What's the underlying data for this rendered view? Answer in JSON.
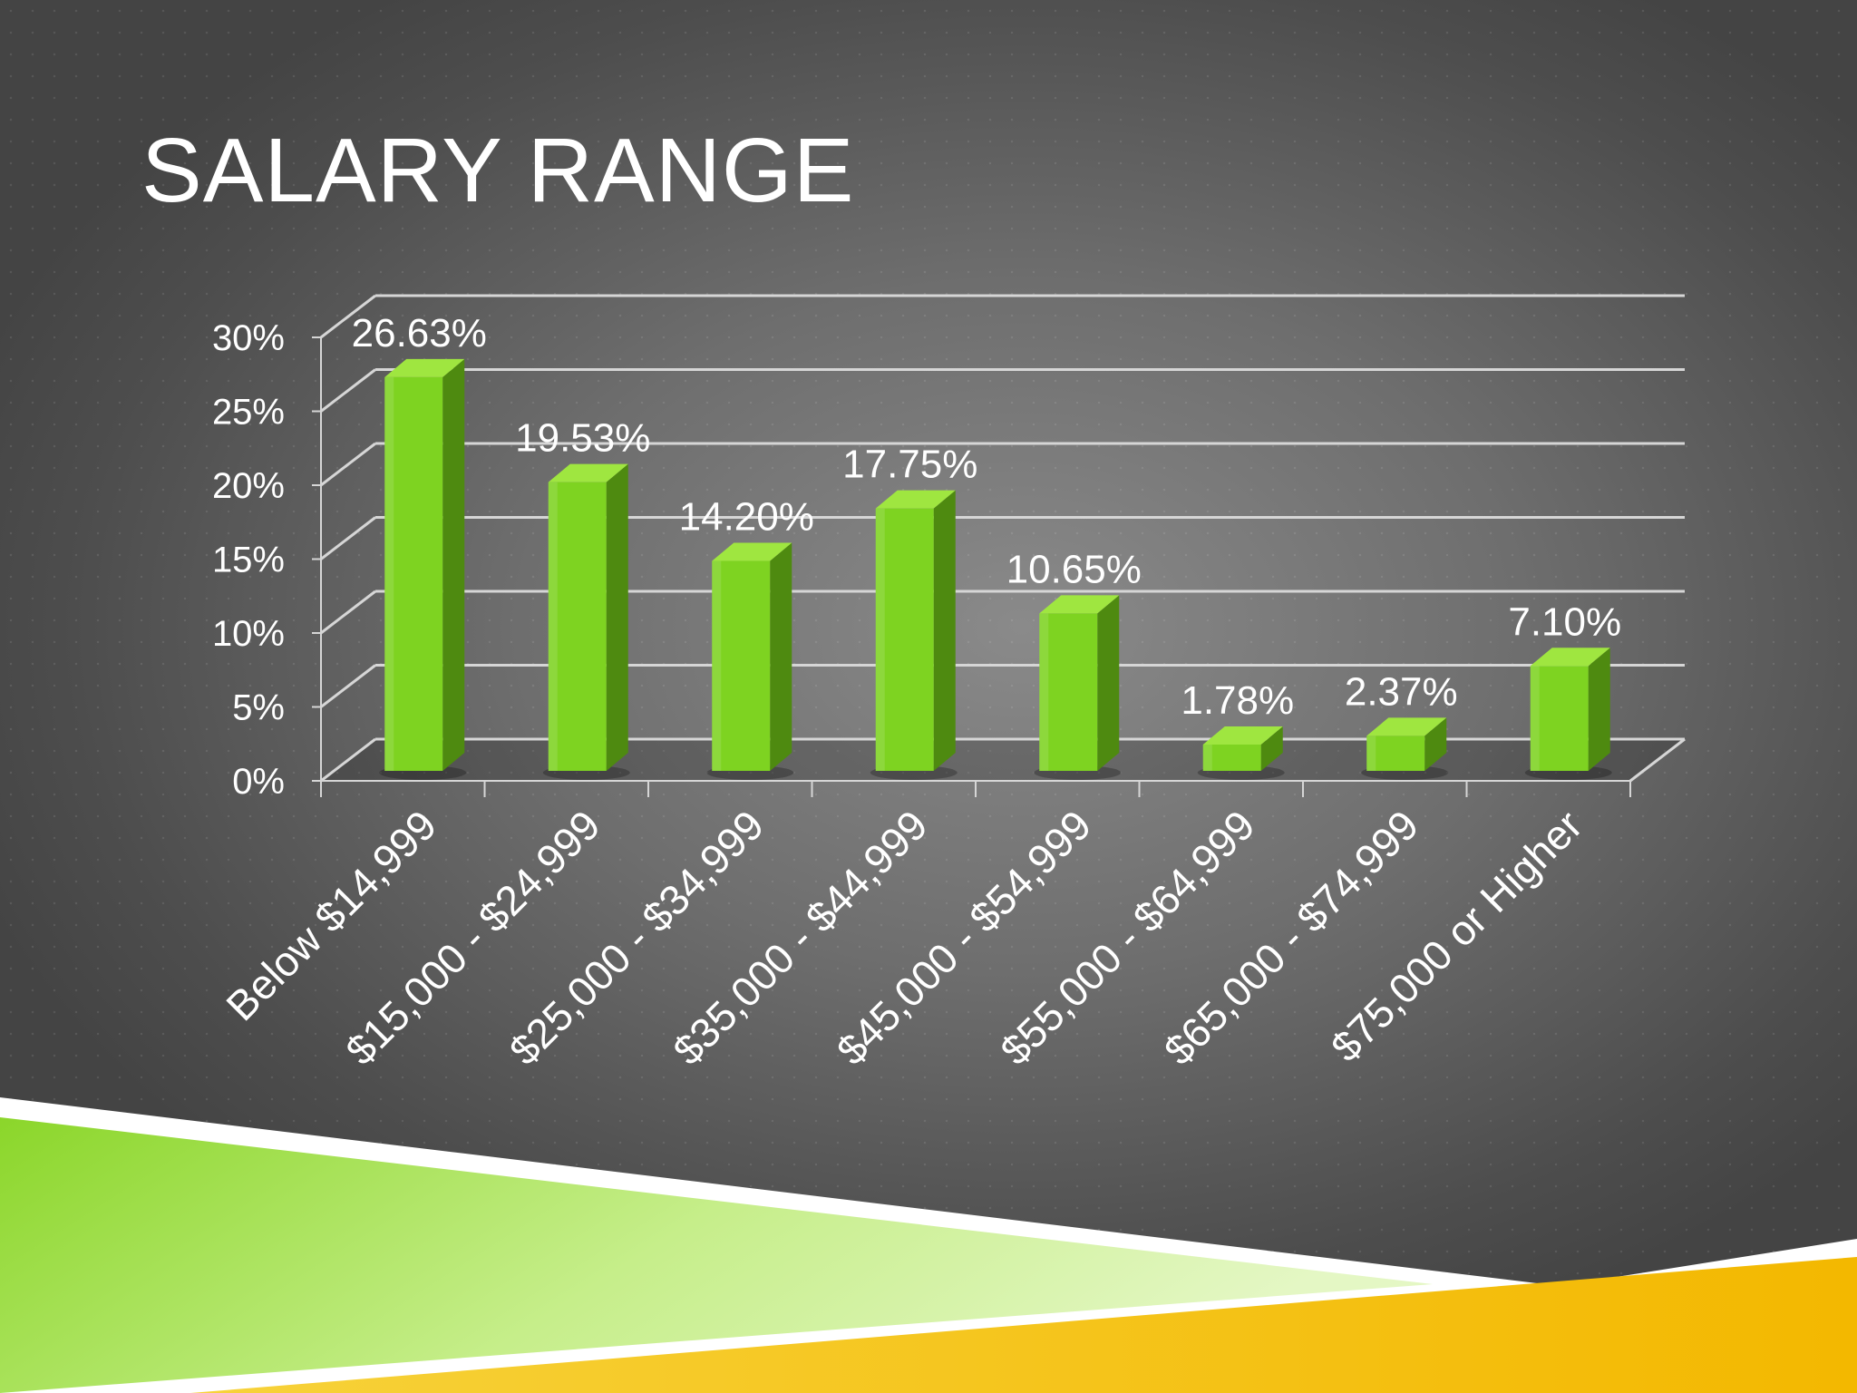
{
  "slide": {
    "title": "SALARY RANGE"
  },
  "colors": {
    "bar_front": "#7ed321",
    "bar_side": "#4e8a10",
    "bar_top": "#9fe640",
    "gridline": "#d6d6d6",
    "text": "#ffffff",
    "accent_green": "#8bd62a",
    "accent_yellow": "#f5c20a"
  },
  "chart_data": {
    "type": "bar",
    "style": "3d-column",
    "title": "",
    "xlabel": "",
    "ylabel": "",
    "categories": [
      "Below $14,999",
      "$15,000 - $24,999",
      "$25,000 - $34,999",
      "$35,000 - $44,999",
      "$45,000 - $54,999",
      "$55,000 - $64,999",
      "$65,000 - $74,999",
      "$75,000 or Higher"
    ],
    "values": [
      26.63,
      19.53,
      14.2,
      17.75,
      10.65,
      1.78,
      2.37,
      7.1
    ],
    "data_labels": [
      "26.63%",
      "19.53%",
      "14.20%",
      "17.75%",
      "10.65%",
      "1.78%",
      "2.37%",
      "7.10%"
    ],
    "ylim": [
      0,
      30
    ],
    "yticks": [
      0,
      5,
      10,
      15,
      20,
      25,
      30
    ],
    "ytick_labels": [
      "0%",
      "5%",
      "10%",
      "15%",
      "20%",
      "25%",
      "30%"
    ],
    "grid": true,
    "legend": "none"
  }
}
